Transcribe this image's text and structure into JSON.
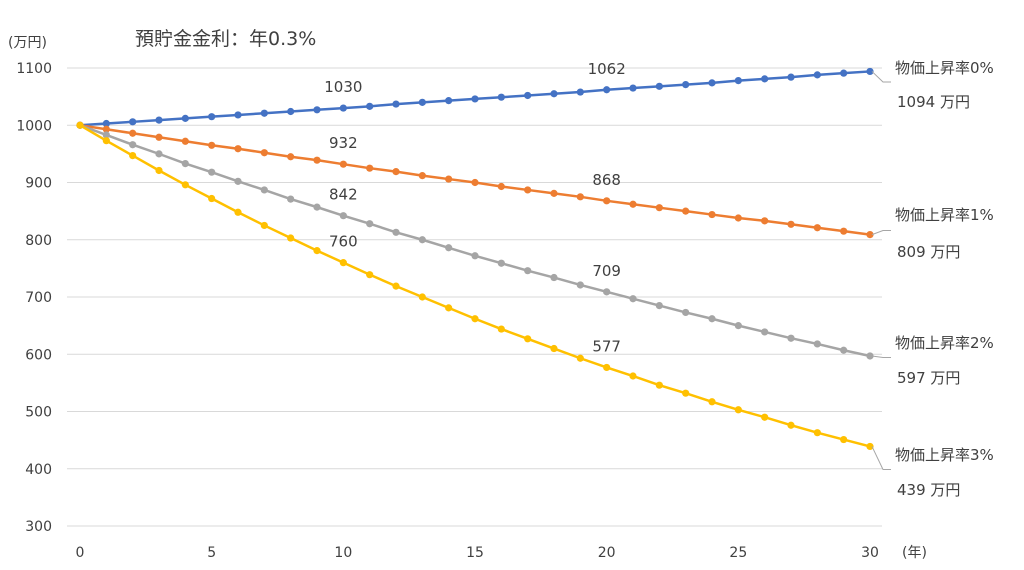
{
  "chart_data": {
    "type": "line",
    "title": "預貯金金利：年0.3%",
    "ylabel": "(万円)",
    "xlabel": "(年)",
    "ylim": [
      300,
      1100
    ],
    "xlim": [
      0,
      30
    ],
    "yticks": [
      300,
      400,
      500,
      600,
      700,
      800,
      900,
      1000,
      1100
    ],
    "xticks": [
      0,
      5,
      10,
      15,
      20,
      25,
      30
    ],
    "grid": "horizontal",
    "x": [
      0,
      1,
      2,
      3,
      4,
      5,
      6,
      7,
      8,
      9,
      10,
      11,
      12,
      13,
      14,
      15,
      16,
      17,
      18,
      19,
      20,
      21,
      22,
      23,
      24,
      25,
      26,
      27,
      28,
      29,
      30
    ],
    "series": [
      {
        "name": "物価上昇率0%",
        "color": "#4472C4",
        "end_label": "1094 万円",
        "values": [
          1000,
          1003,
          1006,
          1009,
          1012,
          1015,
          1018,
          1021,
          1024,
          1027,
          1030,
          1033,
          1037,
          1040,
          1043,
          1046,
          1049,
          1052,
          1055,
          1058,
          1062,
          1065,
          1068,
          1071,
          1074,
          1078,
          1081,
          1084,
          1088,
          1091,
          1094
        ],
        "data_labels": [
          {
            "x": 10,
            "text": "1030"
          },
          {
            "x": 20,
            "text": "1062"
          }
        ]
      },
      {
        "name": "物価上昇率1%",
        "color": "#ED7D31",
        "end_label": "809 万円",
        "values": [
          1000,
          993,
          986,
          979,
          972,
          965,
          959,
          952,
          945,
          939,
          932,
          925,
          919,
          912,
          906,
          900,
          893,
          887,
          881,
          875,
          868,
          862,
          856,
          850,
          844,
          838,
          833,
          827,
          821,
          815,
          809
        ],
        "data_labels": [
          {
            "x": 10,
            "text": "932"
          },
          {
            "x": 20,
            "text": "868"
          }
        ]
      },
      {
        "name": "物価上昇率2%",
        "color": "#A5A5A5",
        "end_label": "597 万円",
        "values": [
          1000,
          983,
          966,
          950,
          933,
          918,
          902,
          887,
          871,
          857,
          842,
          828,
          813,
          800,
          786,
          772,
          759,
          746,
          734,
          721,
          709,
          697,
          685,
          673,
          662,
          650,
          639,
          628,
          618,
          607,
          597
        ],
        "data_labels": [
          {
            "x": 10,
            "text": "842"
          },
          {
            "x": 20,
            "text": "709"
          }
        ]
      },
      {
        "name": "物価上昇率3%",
        "color": "#FFC000",
        "end_label": "439 万円",
        "values": [
          1000,
          973,
          947,
          921,
          896,
          872,
          848,
          825,
          803,
          781,
          760,
          739,
          719,
          700,
          681,
          662,
          644,
          627,
          610,
          593,
          577,
          562,
          546,
          532,
          517,
          503,
          490,
          476,
          463,
          451,
          439
        ],
        "data_labels": [
          {
            "x": 10,
            "text": "760"
          },
          {
            "x": 20,
            "text": "577"
          }
        ]
      }
    ]
  }
}
